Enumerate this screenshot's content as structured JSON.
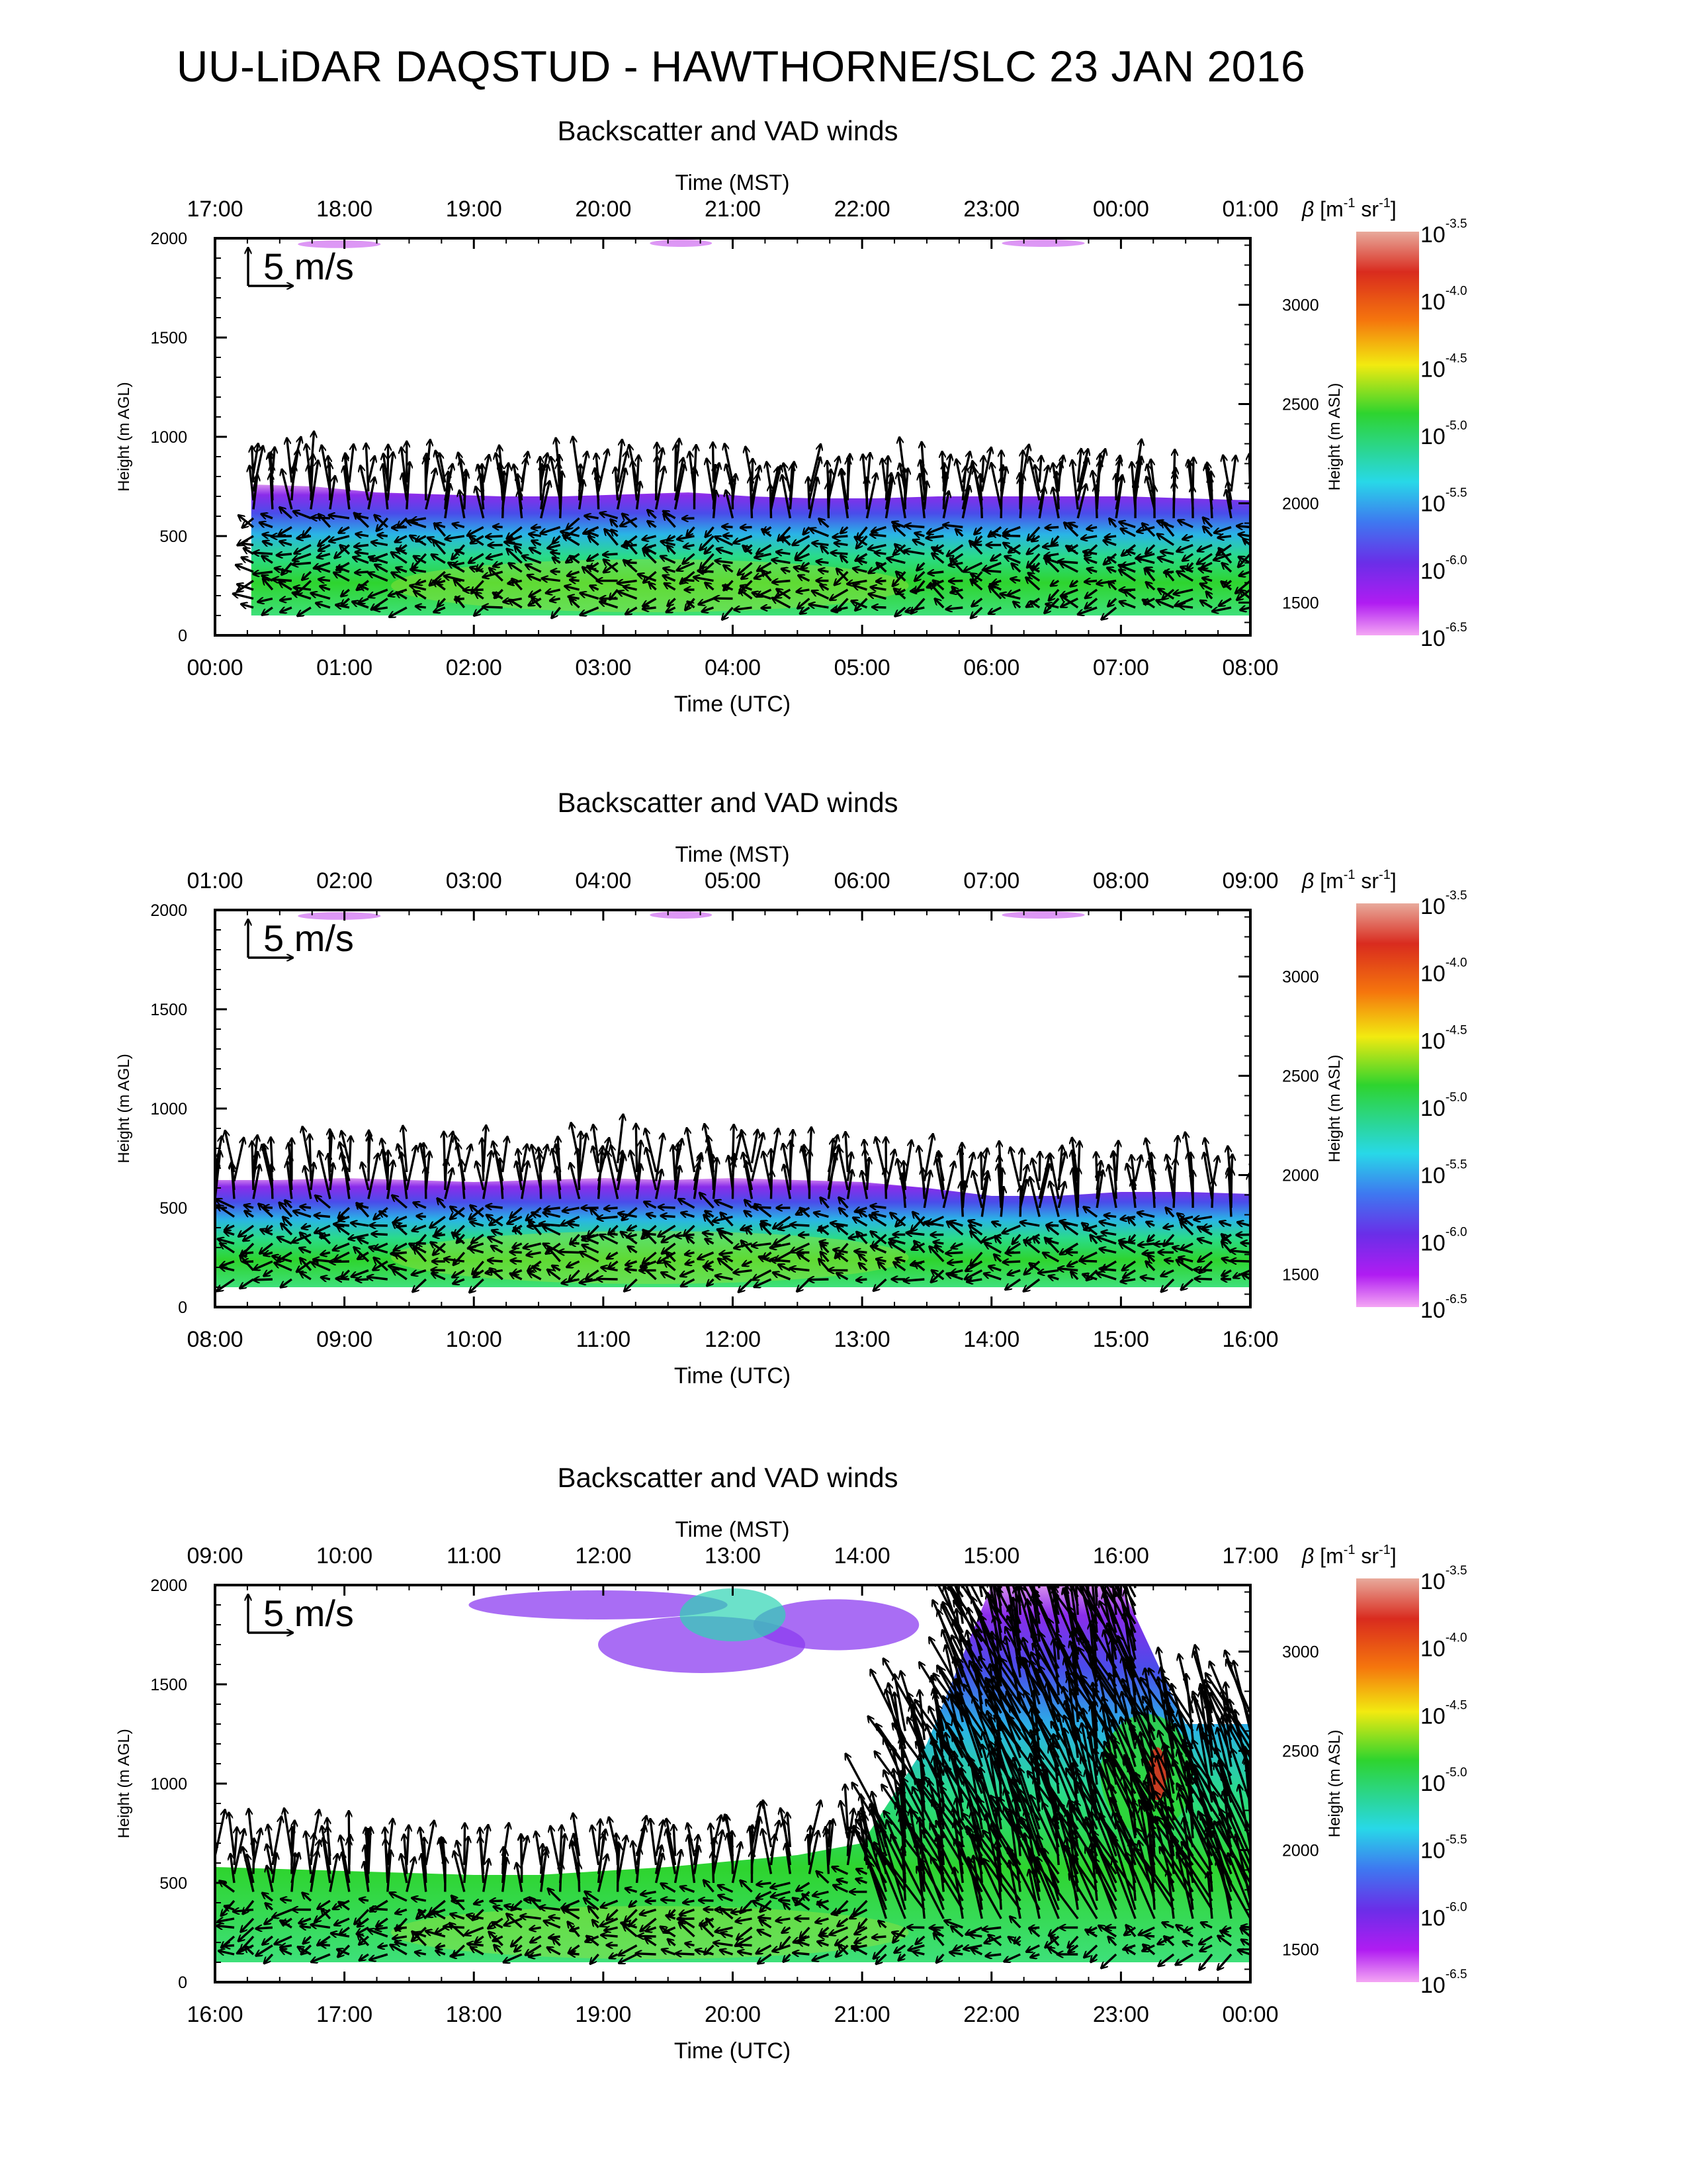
{
  "figure_title": "UU-LiDAR DAQSTUD - HAWTHORNE/SLC 23 JAN 2016",
  "chart_data": [
    {
      "type": "heatmap",
      "title": "Backscatter and VAD winds",
      "top_axis_label": "Time (MST)",
      "top_ticks": [
        "17:00",
        "18:00",
        "19:00",
        "20:00",
        "21:00",
        "22:00",
        "23:00",
        "00:00",
        "01:00"
      ],
      "xlabel": "Time (UTC)",
      "x_ticks": [
        "00:00",
        "01:00",
        "02:00",
        "03:00",
        "04:00",
        "05:00",
        "06:00",
        "07:00",
        "08:00"
      ],
      "xlim": [
        "00:00",
        "08:00"
      ],
      "ylabel": "Height (m AGL)",
      "y_ticks": [
        0,
        500,
        1000,
        1500,
        2000
      ],
      "ylim": [
        0,
        2000
      ],
      "y2label": "Height (m ASL)",
      "y2_ticks": [
        1500,
        2000,
        2500,
        3000
      ],
      "vector_scale_label": "5 m/s",
      "aerosol_layer_top_m": [
        760,
        750,
        720,
        710,
        700,
        700,
        710,
        720,
        700,
        690,
        690,
        700,
        700,
        700,
        700,
        690,
        680
      ],
      "layer_bottom_m": 100
    },
    {
      "type": "heatmap",
      "title": "Backscatter and VAD winds",
      "top_axis_label": "Time (MST)",
      "top_ticks": [
        "01:00",
        "02:00",
        "03:00",
        "04:00",
        "05:00",
        "06:00",
        "07:00",
        "08:00",
        "09:00"
      ],
      "xlabel": "Time (UTC)",
      "x_ticks": [
        "08:00",
        "09:00",
        "10:00",
        "11:00",
        "12:00",
        "13:00",
        "14:00",
        "15:00",
        "16:00"
      ],
      "xlim": [
        "08:00",
        "16:00"
      ],
      "ylabel": "Height (m AGL)",
      "y_ticks": [
        0,
        500,
        1000,
        1500,
        2000
      ],
      "ylim": [
        0,
        2000
      ],
      "y2label": "Height (m ASL)",
      "y2_ticks": [
        1500,
        2000,
        2500,
        3000
      ],
      "vector_scale_label": "5 m/s",
      "aerosol_layer_top_m": [
        640,
        640,
        650,
        640,
        630,
        640,
        650,
        640,
        650,
        640,
        630,
        600,
        560,
        560,
        580,
        580,
        570
      ],
      "layer_bottom_m": 100
    },
    {
      "type": "heatmap",
      "title": "Backscatter and VAD winds",
      "top_axis_label": "Time (MST)",
      "top_ticks": [
        "09:00",
        "10:00",
        "11:00",
        "12:00",
        "13:00",
        "14:00",
        "15:00",
        "16:00",
        "17:00"
      ],
      "xlabel": "Time (UTC)",
      "x_ticks": [
        "16:00",
        "17:00",
        "18:00",
        "19:00",
        "20:00",
        "21:00",
        "22:00",
        "23:00",
        "00:00"
      ],
      "xlim": [
        "16:00",
        "00:00"
      ],
      "ylabel": "Height (m AGL)",
      "y_ticks": [
        0,
        500,
        1000,
        1500,
        2000
      ],
      "ylim": [
        0,
        2000
      ],
      "y2label": "Height (m ASL)",
      "y2_ticks": [
        1500,
        2000,
        2500,
        3000
      ],
      "vector_scale_label": "5 m/s",
      "aerosol_layer_top_m": [
        580,
        570,
        560,
        550,
        540,
        540,
        560,
        580,
        610,
        640,
        700,
        1200,
        2000,
        2000,
        2000,
        1300,
        1300
      ],
      "layer_bottom_m": 100
    }
  ],
  "colorbar": {
    "label": "β [m⁻¹ sr⁻¹]",
    "base": "10",
    "exponents": [
      "-3.5",
      "-4.0",
      "-4.5",
      "-5.0",
      "-5.5",
      "-6.0",
      "-6.5"
    ],
    "colors": [
      "#e9a2a0",
      "#d82424",
      "#f47d0c",
      "#f4e80c",
      "#2dd42d",
      "#28d9e6",
      "#6a34e8",
      "#a410f0",
      "#f0a2f6"
    ]
  }
}
